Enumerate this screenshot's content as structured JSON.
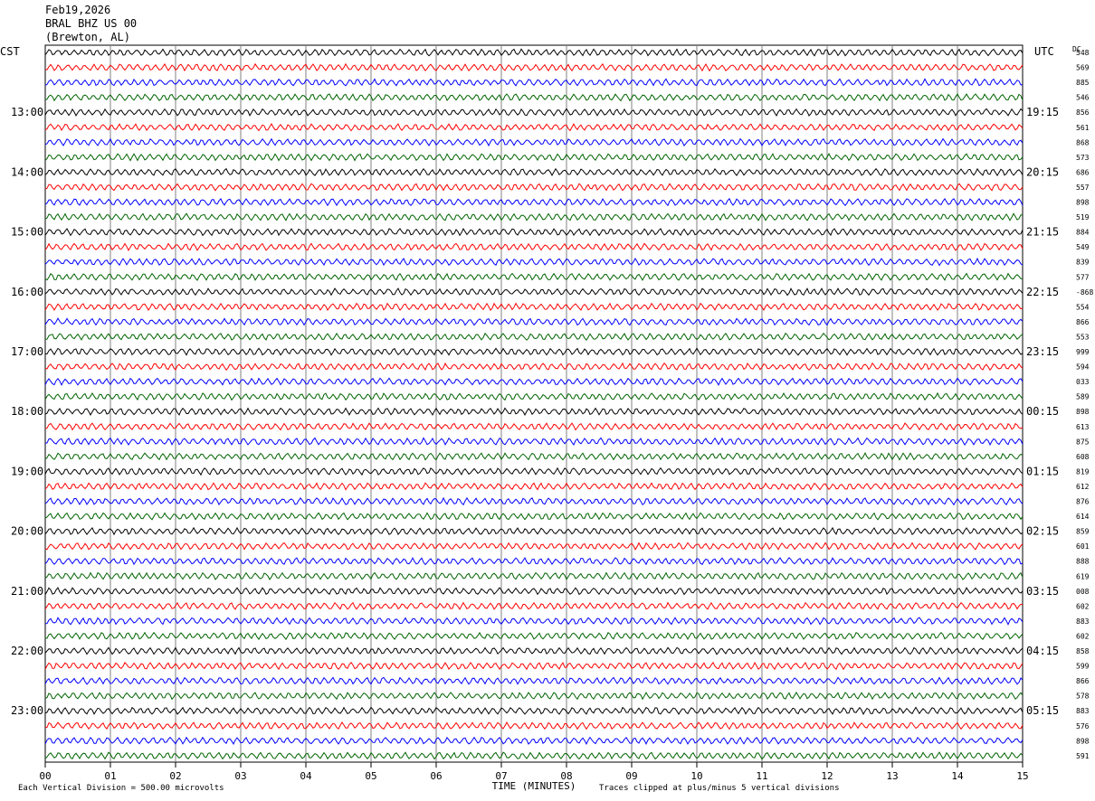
{
  "header": {
    "date": "Feb19,2026",
    "station": "BRAL BHZ US 00",
    "location": "(Brewton, AL)"
  },
  "left_tz": "CST",
  "right_tz": "UTC",
  "dc_label": "DC",
  "footer": {
    "scale_note": "Each Vertical Division =  500.00 microvolts",
    "clip_note": "Traces clipped at plus/minus 5 vertical divisions"
  },
  "colors": {
    "rows": [
      "#000000",
      "#ff0000",
      "#0000ff",
      "#006400"
    ],
    "grid": "#808080"
  },
  "chart_data": {
    "type": "line",
    "title": "",
    "xlabel": "TIME (MINUTES)",
    "x_ticks": [
      "00",
      "01",
      "02",
      "03",
      "04",
      "05",
      "06",
      "07",
      "08",
      "09",
      "10",
      "11",
      "12",
      "13",
      "14",
      "15"
    ],
    "xlim": [
      0,
      15
    ],
    "left_labels": [
      "13:00",
      "14:00",
      "15:00",
      "16:00",
      "17:00",
      "18:00",
      "19:00",
      "20:00",
      "21:00",
      "22:00",
      "23:00"
    ],
    "right_labels": [
      "19:15",
      "20:15",
      "21:15",
      "22:15",
      "23:15",
      "00:15",
      "01:15",
      "02:15",
      "03:15",
      "04:15",
      "05:15"
    ],
    "dc_offsets": [
      "548",
      "569",
      "885",
      "546",
      "856",
      "561",
      "868",
      "573",
      "686",
      "557",
      "898",
      "519",
      "884",
      "549",
      "839",
      "577",
      "-868",
      "554",
      "866",
      "553",
      "999",
      "594",
      "033",
      "589",
      "898",
      "613",
      "875",
      "608",
      "819",
      "612",
      "876",
      "614",
      "859",
      "601",
      "888",
      "619",
      "008",
      "602",
      "883",
      "602",
      "858",
      "599",
      "866",
      "578",
      "883",
      "576",
      "898",
      "591"
    ],
    "rows_per_hour": 4,
    "row_minutes": 15
  }
}
